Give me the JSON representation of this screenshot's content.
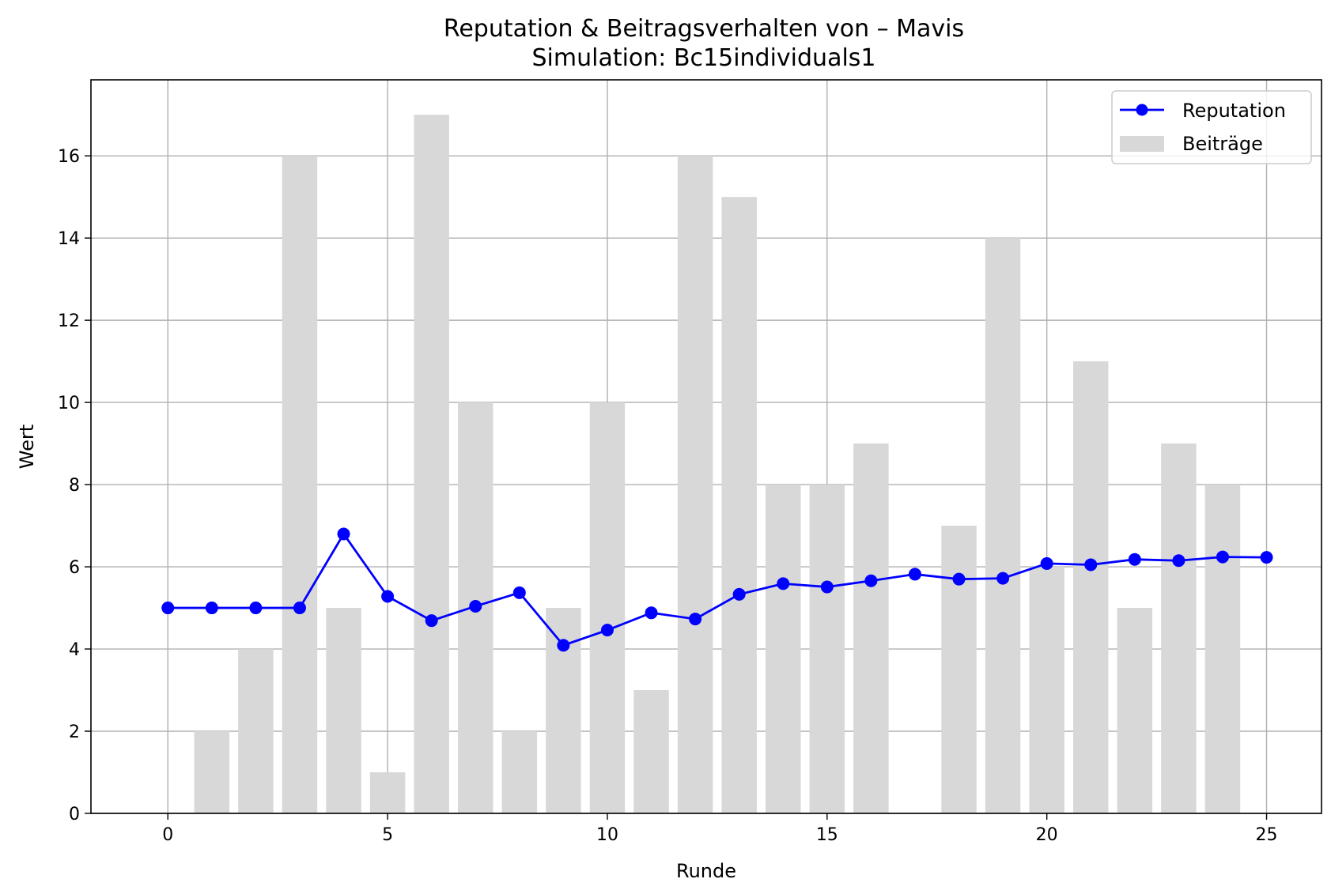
{
  "chart_data": {
    "type": "bar+line",
    "title": "Reputation & Beitragsverhalten von – Mavis",
    "subtitle": "Simulation: Bc15individuals1",
    "xlabel": "Runde",
    "ylabel": "Wert",
    "xlim": [
      -1.75,
      26.25
    ],
    "ylim": [
      0,
      17.85
    ],
    "xticks": [
      0,
      5,
      10,
      15,
      20,
      25
    ],
    "yticks": [
      0,
      2,
      4,
      6,
      8,
      10,
      12,
      14,
      16
    ],
    "grid": true,
    "legend_position": "top-right",
    "colors": {
      "reputation": "#0000ff",
      "contributions": "#d8d8d8",
      "grid": "#b0b0b0"
    },
    "contributions": {
      "name": "Beiträge",
      "x": [
        1,
        2,
        3,
        4,
        5,
        6,
        7,
        8,
        9,
        10,
        11,
        12,
        13,
        14,
        15,
        16,
        18,
        19,
        20,
        21,
        22,
        23,
        24
      ],
      "values": [
        2,
        4,
        16,
        5,
        1,
        17,
        10,
        2,
        5,
        10,
        3,
        16,
        15,
        8,
        8,
        9,
        7,
        14,
        6,
        11,
        5,
        9,
        8
      ]
    },
    "reputation": {
      "name": "Reputation",
      "x": [
        0,
        1,
        2,
        3,
        4,
        5,
        6,
        7,
        8,
        9,
        10,
        11,
        12,
        13,
        14,
        15,
        16,
        17,
        18,
        19,
        20,
        21,
        22,
        23,
        24,
        25
      ],
      "values": [
        5.0,
        5.0,
        5.0,
        5.0,
        6.8,
        5.28,
        4.69,
        5.04,
        5.37,
        4.09,
        4.46,
        4.88,
        4.73,
        5.33,
        5.59,
        5.51,
        5.66,
        5.82,
        5.7,
        5.72,
        6.08,
        6.05,
        6.18,
        6.15,
        6.24,
        6.23
      ]
    }
  }
}
